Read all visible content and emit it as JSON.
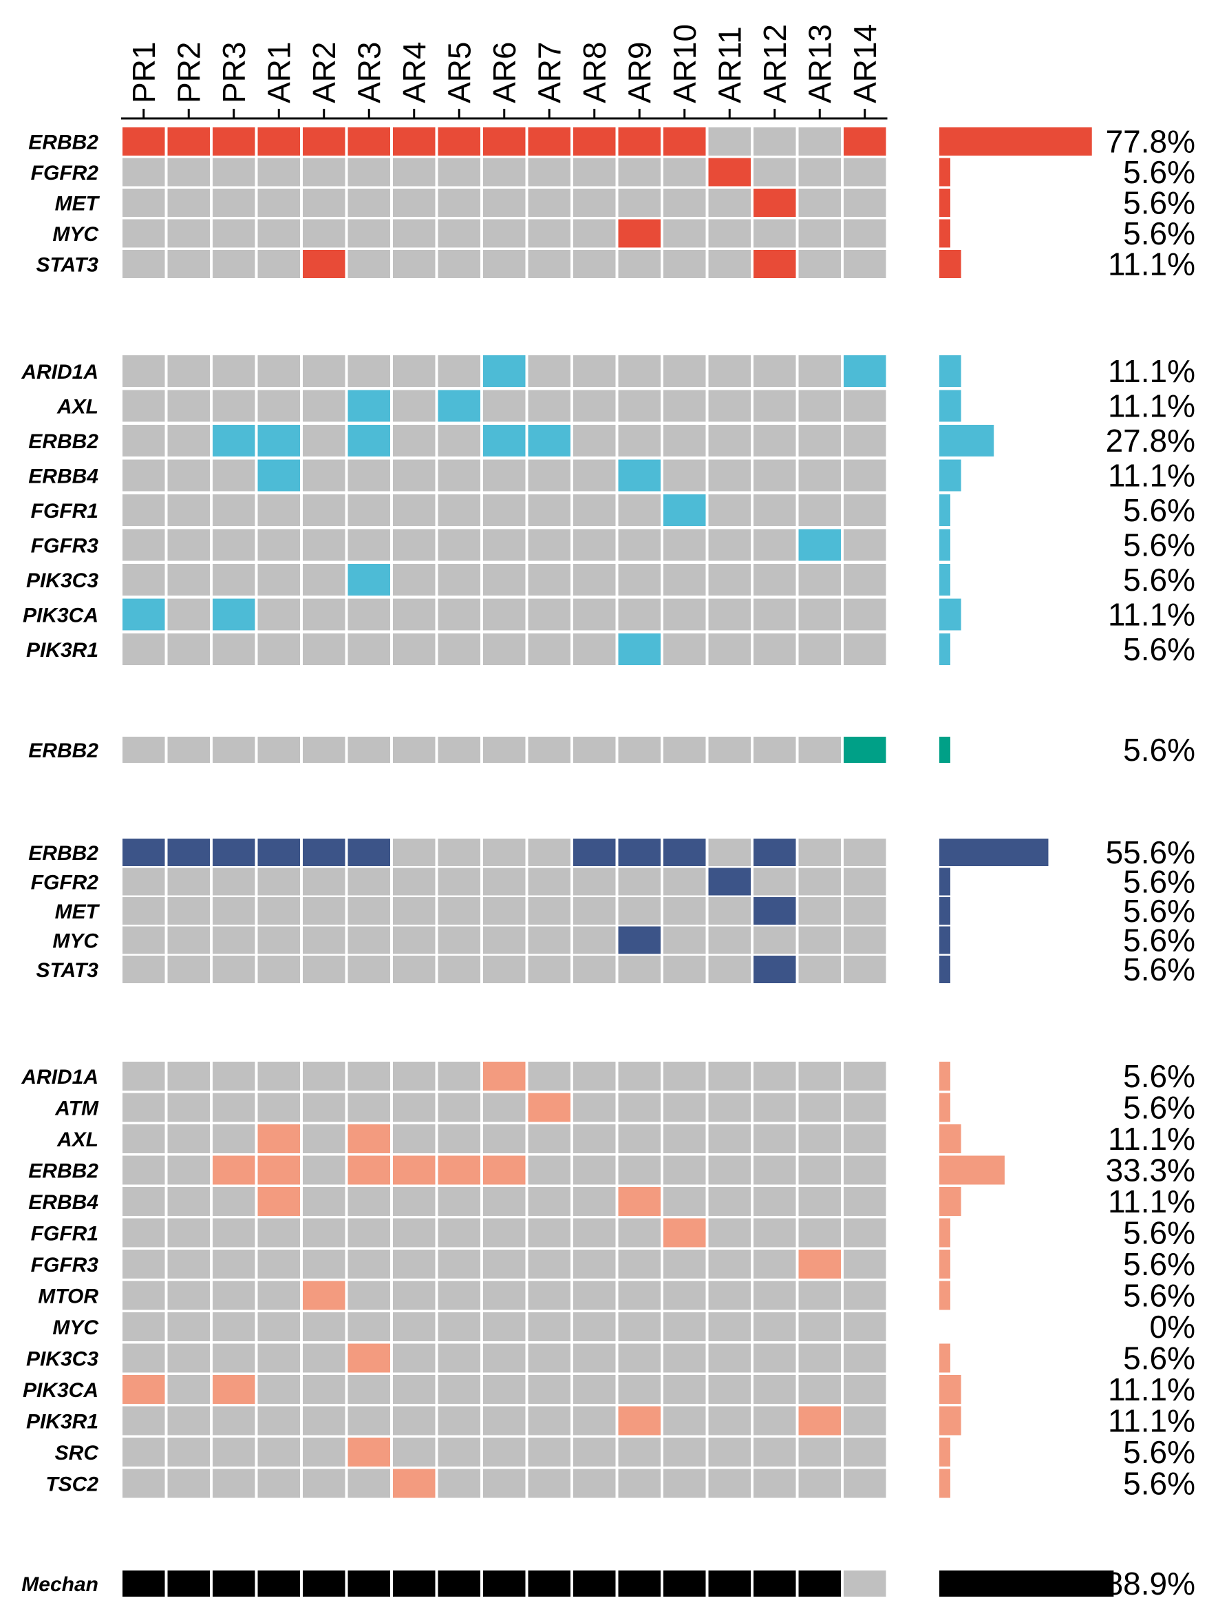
{
  "chart_data": {
    "type": "heatmap",
    "samples": [
      "PR1",
      "PR2",
      "PR3",
      "AR1",
      "AR2",
      "AR3",
      "AR4",
      "AR5",
      "AR6",
      "AR7",
      "AR8",
      "AR9",
      "AR10",
      "AR11",
      "AR12",
      "AR13",
      "AR14"
    ],
    "empty_color": "#c0c0c0",
    "blocks": [
      {
        "color": "#e84b37",
        "rows": [
          {
            "gene": "ERBB2",
            "altered": [
              0,
              1,
              2,
              3,
              4,
              5,
              6,
              7,
              8,
              9,
              10,
              11,
              12,
              16
            ],
            "percent": 77.8,
            "label": "77.8%"
          },
          {
            "gene": "FGFR2",
            "altered": [
              13
            ],
            "percent": 5.6,
            "label": "5.6%"
          },
          {
            "gene": "MET",
            "altered": [
              14
            ],
            "percent": 5.6,
            "label": "5.6%"
          },
          {
            "gene": "MYC",
            "altered": [
              11
            ],
            "percent": 5.6,
            "label": "5.6%"
          },
          {
            "gene": "STAT3",
            "altered": [
              4,
              14
            ],
            "percent": 11.1,
            "label": "11.1%"
          }
        ]
      },
      {
        "color": "#4dbbd6",
        "rows": [
          {
            "gene": "ARID1A",
            "altered": [
              8,
              16
            ],
            "percent": 11.1,
            "label": "11.1%"
          },
          {
            "gene": "AXL",
            "altered": [
              5,
              7
            ],
            "percent": 11.1,
            "label": "11.1%"
          },
          {
            "gene": "ERBB2",
            "altered": [
              2,
              3,
              5,
              8,
              9
            ],
            "percent": 27.8,
            "label": "27.8%"
          },
          {
            "gene": "ERBB4",
            "altered": [
              3,
              11
            ],
            "percent": 11.1,
            "label": "11.1%"
          },
          {
            "gene": "FGFR1",
            "altered": [
              12
            ],
            "percent": 5.6,
            "label": "5.6%"
          },
          {
            "gene": "FGFR3",
            "altered": [
              15
            ],
            "percent": 5.6,
            "label": "5.6%"
          },
          {
            "gene": "PIK3C3",
            "altered": [
              5
            ],
            "percent": 5.6,
            "label": "5.6%"
          },
          {
            "gene": "PIK3CA",
            "altered": [
              0,
              2
            ],
            "percent": 11.1,
            "label": "11.1%"
          },
          {
            "gene": "PIK3R1",
            "altered": [
              11
            ],
            "percent": 5.6,
            "label": "5.6%"
          }
        ]
      },
      {
        "color": "#00a087",
        "rows": [
          {
            "gene": "ERBB2",
            "altered": [
              16
            ],
            "percent": 5.6,
            "label": "5.6%"
          }
        ]
      },
      {
        "color": "#3c5488",
        "rows": [
          {
            "gene": "ERBB2",
            "altered": [
              0,
              1,
              2,
              3,
              4,
              5,
              10,
              11,
              12,
              14
            ],
            "percent": 55.6,
            "label": "55.6%"
          },
          {
            "gene": "FGFR2",
            "altered": [
              13
            ],
            "percent": 5.6,
            "label": "5.6%"
          },
          {
            "gene": "MET",
            "altered": [
              14
            ],
            "percent": 5.6,
            "label": "5.6%"
          },
          {
            "gene": "MYC",
            "altered": [
              11
            ],
            "percent": 5.6,
            "label": "5.6%"
          },
          {
            "gene": "STAT3",
            "altered": [
              14
            ],
            "percent": 5.6,
            "label": "5.6%"
          }
        ]
      },
      {
        "color": "#f39b7f",
        "rows": [
          {
            "gene": "ARID1A",
            "altered": [
              8
            ],
            "percent": 5.6,
            "label": "5.6%"
          },
          {
            "gene": "ATM",
            "altered": [
              9
            ],
            "percent": 5.6,
            "label": "5.6%"
          },
          {
            "gene": "AXL",
            "altered": [
              3,
              5
            ],
            "percent": 11.1,
            "label": "11.1%"
          },
          {
            "gene": "ERBB2",
            "altered": [
              2,
              3,
              5,
              6,
              7,
              8
            ],
            "percent": 33.3,
            "label": "33.3%"
          },
          {
            "gene": "ERBB4",
            "altered": [
              3,
              11
            ],
            "percent": 11.1,
            "label": "11.1%"
          },
          {
            "gene": "FGFR1",
            "altered": [
              12
            ],
            "percent": 5.6,
            "label": "5.6%"
          },
          {
            "gene": "FGFR3",
            "altered": [
              15
            ],
            "percent": 5.6,
            "label": "5.6%"
          },
          {
            "gene": "MTOR",
            "altered": [
              4
            ],
            "percent": 5.6,
            "label": "5.6%"
          },
          {
            "gene": "MYC",
            "altered": [],
            "percent": 0,
            "label": "0%"
          },
          {
            "gene": "PIK3C3",
            "altered": [
              5
            ],
            "percent": 5.6,
            "label": "5.6%"
          },
          {
            "gene": "PIK3CA",
            "altered": [
              0,
              2
            ],
            "percent": 11.1,
            "label": "11.1%"
          },
          {
            "gene": "PIK3R1",
            "altered": [
              11,
              15
            ],
            "percent": 11.1,
            "label": "11.1%"
          },
          {
            "gene": "SRC",
            "altered": [
              5
            ],
            "percent": 5.6,
            "label": "5.6%"
          },
          {
            "gene": "TSC2",
            "altered": [
              6
            ],
            "percent": 5.6,
            "label": "5.6%"
          }
        ]
      },
      {
        "color": "#000000",
        "rows": [
          {
            "gene": "Mechan",
            "altered": [
              0,
              1,
              2,
              3,
              4,
              5,
              6,
              7,
              8,
              9,
              10,
              11,
              12,
              13,
              14,
              15
            ],
            "percent": 88.9,
            "label": "88.9%"
          }
        ]
      }
    ]
  }
}
